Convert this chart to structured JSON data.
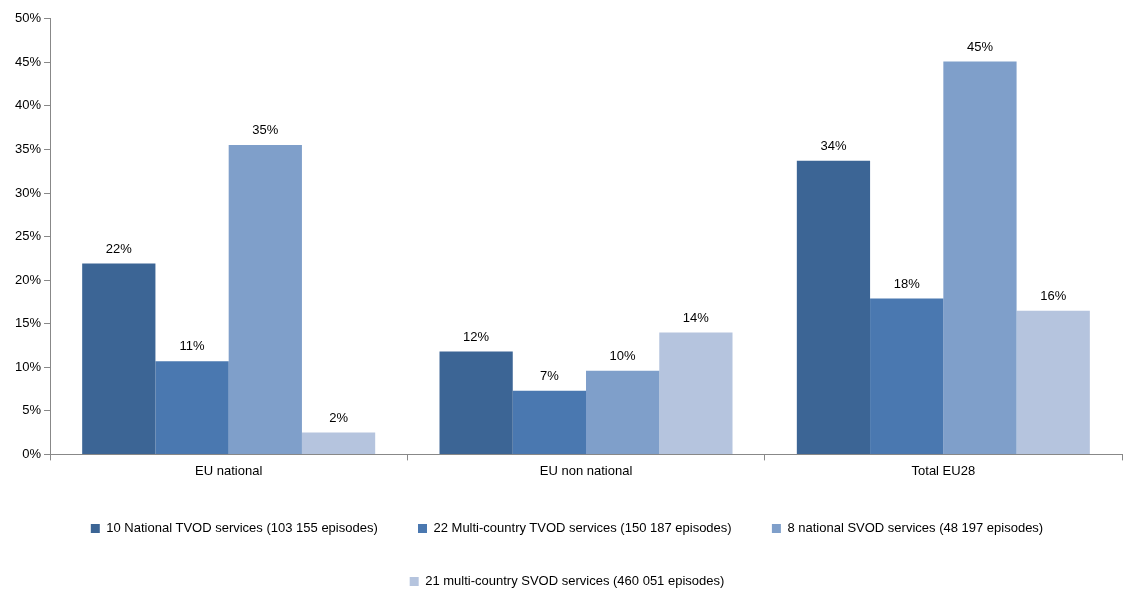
{
  "chart_data": {
    "type": "bar",
    "categories": [
      "EU national",
      "EU non national",
      "Total EU28"
    ],
    "series": [
      {
        "name": "10 National TVOD services (103 155 episodes)",
        "color": "#3c6595",
        "values": [
          21.9,
          11.8,
          33.7
        ],
        "value_labels": [
          "22%",
          "12%",
          "34%"
        ]
      },
      {
        "name": "22 Multi-country TVOD services (150 187 episodes)",
        "color": "#4a78b0",
        "values": [
          10.7,
          7.3,
          17.9
        ],
        "value_labels": [
          "11%",
          "7%",
          "18%"
        ]
      },
      {
        "name": "8 national SVOD services (48 197 episodes)",
        "color": "#7f9fca",
        "values": [
          35.5,
          9.6,
          45.1
        ],
        "value_labels": [
          "35%",
          "10%",
          "45%"
        ]
      },
      {
        "name": "21 multi-country SVOD services (460 051 episodes)",
        "color": "#b5c4de",
        "values": [
          2.5,
          14.0,
          16.5
        ],
        "value_labels": [
          "2%",
          "14%",
          "16%"
        ]
      }
    ],
    "ylim": [
      0,
      50
    ],
    "yticks": [
      {
        "value": 0,
        "label": "0%"
      },
      {
        "value": 5,
        "label": "5%"
      },
      {
        "value": 10,
        "label": "10%"
      },
      {
        "value": 15,
        "label": "15%"
      },
      {
        "value": 20,
        "label": "20%"
      },
      {
        "value": 25,
        "label": "25%"
      },
      {
        "value": 30,
        "label": "30%"
      },
      {
        "value": 35,
        "label": "35%"
      },
      {
        "value": 40,
        "label": "40%"
      },
      {
        "value": 45,
        "label": "45%"
      },
      {
        "value": 50,
        "label": "50%"
      }
    ],
    "grid": false,
    "legend": "bottom"
  }
}
